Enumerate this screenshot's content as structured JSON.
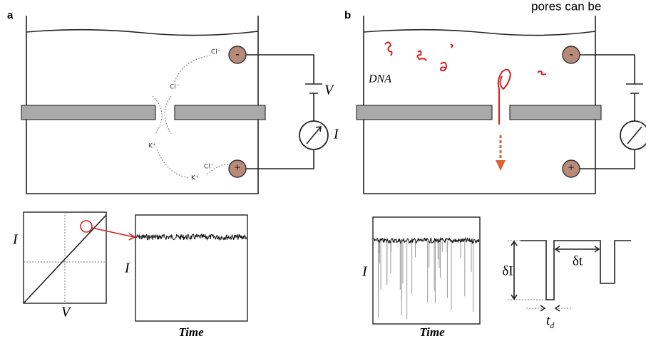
{
  "caption_fragment": "pores can be",
  "panel_a": {
    "label": "a",
    "ions": [
      "Cl⁻",
      "Cl⁻",
      "K⁺",
      "K⁺",
      "Cl⁻"
    ],
    "electrodes": [
      "-",
      "+"
    ],
    "voltage": "V",
    "meter": "I",
    "iv_plot": {
      "y_label": "I",
      "x_label": "V"
    },
    "trace": {
      "y_label": "I",
      "x_label": "Time"
    }
  },
  "panel_b": {
    "label": "b",
    "molecule": "DNA",
    "electrodes": [
      "-",
      "+"
    ],
    "trace": {
      "y_label": "I",
      "x_label": "Time"
    },
    "schematic": {
      "amplitude": "δI",
      "interval": "δt",
      "dwell": {
        "main": "t",
        "sub": "d"
      }
    }
  }
}
